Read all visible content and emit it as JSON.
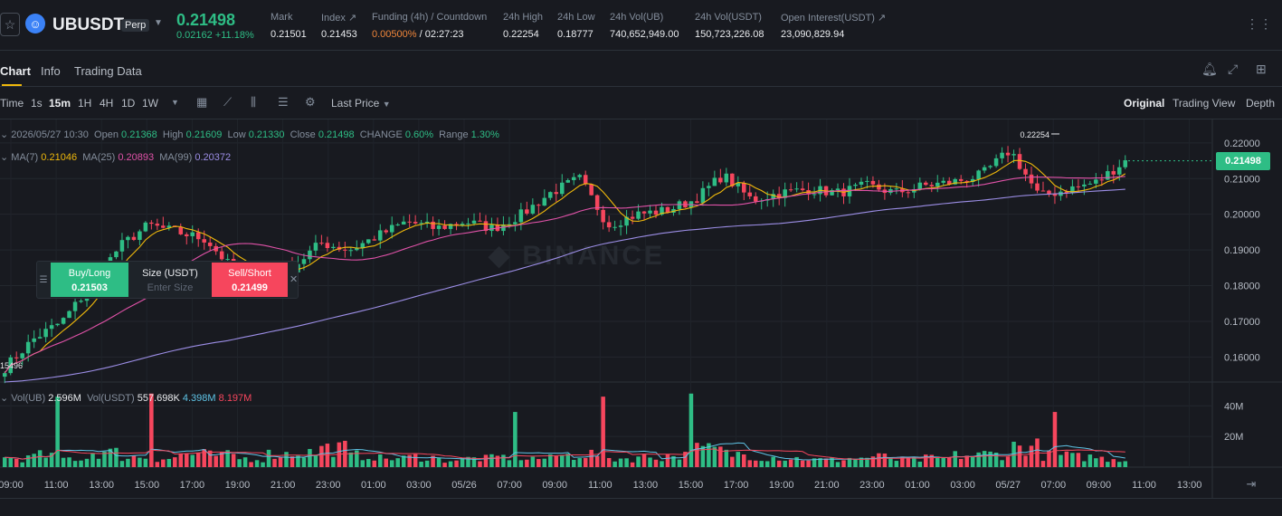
{
  "ticker": {
    "symbol": "UBUSDT",
    "contract_type": "Perp",
    "last_price": "0.21498",
    "change": "0.02162 +11.18%",
    "stats": [
      {
        "label": "Mark",
        "value": "0.21501"
      },
      {
        "label": "Index ↗",
        "value": "0.21453"
      },
      {
        "label": "Funding (4h) / Countdown",
        "value_a": "0.00500%",
        "value_b": " / 02:27:23"
      },
      {
        "label": "24h High",
        "value": "0.22254"
      },
      {
        "label": "24h Low",
        "value": "0.18777"
      },
      {
        "label": "24h Vol(UB)",
        "value": "740,652,949.00"
      },
      {
        "label": "24h Vol(USDT)",
        "value": "150,723,226.08"
      },
      {
        "label": "Open Interest(USDT) ↗",
        "value": "23,090,829.94"
      }
    ]
  },
  "tabs": {
    "chart": "Chart",
    "info": "Info",
    "trading_data": "Trading Data"
  },
  "toolbar": {
    "intervals": [
      "Time",
      "1s",
      "15m",
      "1H",
      "4H",
      "1D",
      "1W"
    ],
    "active_interval": "15m",
    "price_type": "Last Price",
    "views": [
      "Original",
      "Trading View",
      "Depth"
    ],
    "active_view": "Original"
  },
  "legend": {
    "ohlc": {
      "date": "2026/05/27 10:30",
      "open_label": "Open",
      "open": "0.21368",
      "high_label": "High",
      "high": "0.21609",
      "low_label": "Low",
      "low": "0.21330",
      "close_label": "Close",
      "close": "0.21498",
      "change_label": "CHANGE",
      "change": "0.60%",
      "range_label": "Range",
      "range": "1.30%"
    },
    "ma": {
      "ma7_label": "MA(7)",
      "ma7": "0.21046",
      "ma25_label": "MA(25)",
      "ma25": "0.20893",
      "ma99_label": "MA(99)",
      "ma99": "0.20372"
    },
    "vol": {
      "vol_ub_label": "Vol(UB)",
      "vol_ub": "2.596M",
      "vol_usdt_label": "Vol(USDT)",
      "vol_usdt": "557.698K",
      "ma_a": "4.398M",
      "ma_b": "8.197M"
    }
  },
  "quick_order": {
    "buy_label": "Buy/Long",
    "buy_price": "0.21503",
    "size_label": "Size (USDT)",
    "size_placeholder": "Enter Size",
    "sell_label": "Sell/Short",
    "sell_price": "0.21499"
  },
  "price_marker": "0.21498",
  "annotations": {
    "high_marker": "0.22254",
    "low_marker": "15496"
  },
  "colors": {
    "up": "#2ebd85",
    "down": "#f6465d",
    "ma7": "#f0b90b",
    "ma25": "#e052a8",
    "ma99": "#9c8ee6",
    "accent": "#f0b90b"
  },
  "chart_data": {
    "type": "candlestick",
    "price_axis": {
      "ticks": [
        "0.22000",
        "0.21000",
        "0.20000",
        "0.19000",
        "0.18000",
        "0.17000",
        "0.16000"
      ],
      "ylim": [
        0.153,
        0.223
      ]
    },
    "volume_axis": {
      "ticks": [
        "40M",
        "20M"
      ],
      "ylim": [
        0,
        52
      ]
    },
    "time_ticks": [
      "09:00",
      "11:00",
      "13:00",
      "15:00",
      "17:00",
      "19:00",
      "21:00",
      "23:00",
      "01:00",
      "03:00",
      "05/26",
      "07:00",
      "09:00",
      "11:00",
      "13:00",
      "15:00",
      "17:00",
      "19:00",
      "21:00",
      "23:00",
      "01:00",
      "03:00",
      "05/27",
      "07:00",
      "09:00",
      "11:00",
      "13:00"
    ],
    "close_anchors": [
      0.157,
      0.165,
      0.17,
      0.18,
      0.191,
      0.197,
      0.195,
      0.193,
      0.184,
      0.184,
      0.185,
      0.192,
      0.19,
      0.194,
      0.198,
      0.196,
      0.198,
      0.196,
      0.2,
      0.206,
      0.21,
      0.197,
      0.2,
      0.201,
      0.204,
      0.211,
      0.204,
      0.206,
      0.207,
      0.206,
      0.208,
      0.206,
      0.208,
      0.209,
      0.211,
      0.218,
      0.205,
      0.207,
      0.209,
      0.215
    ],
    "volume_profile_millions": [
      6,
      8,
      6,
      10,
      7,
      6,
      9,
      8,
      6,
      9,
      10,
      13,
      8,
      6,
      7,
      5,
      6,
      7,
      6,
      8,
      9,
      6,
      7,
      8,
      12,
      9,
      7,
      6,
      5,
      6,
      7,
      5,
      6,
      8,
      9,
      14,
      8,
      7,
      6,
      5
    ],
    "volume_spikes": [
      {
        "time": "11:00",
        "value_millions": 46
      },
      {
        "time": "15:00",
        "value_millions": 48
      },
      {
        "time": "07:00",
        "value_millions": 36
      }
    ],
    "ma_series": [
      "MA(7)",
      "MA(25)",
      "MA(99)"
    ]
  }
}
